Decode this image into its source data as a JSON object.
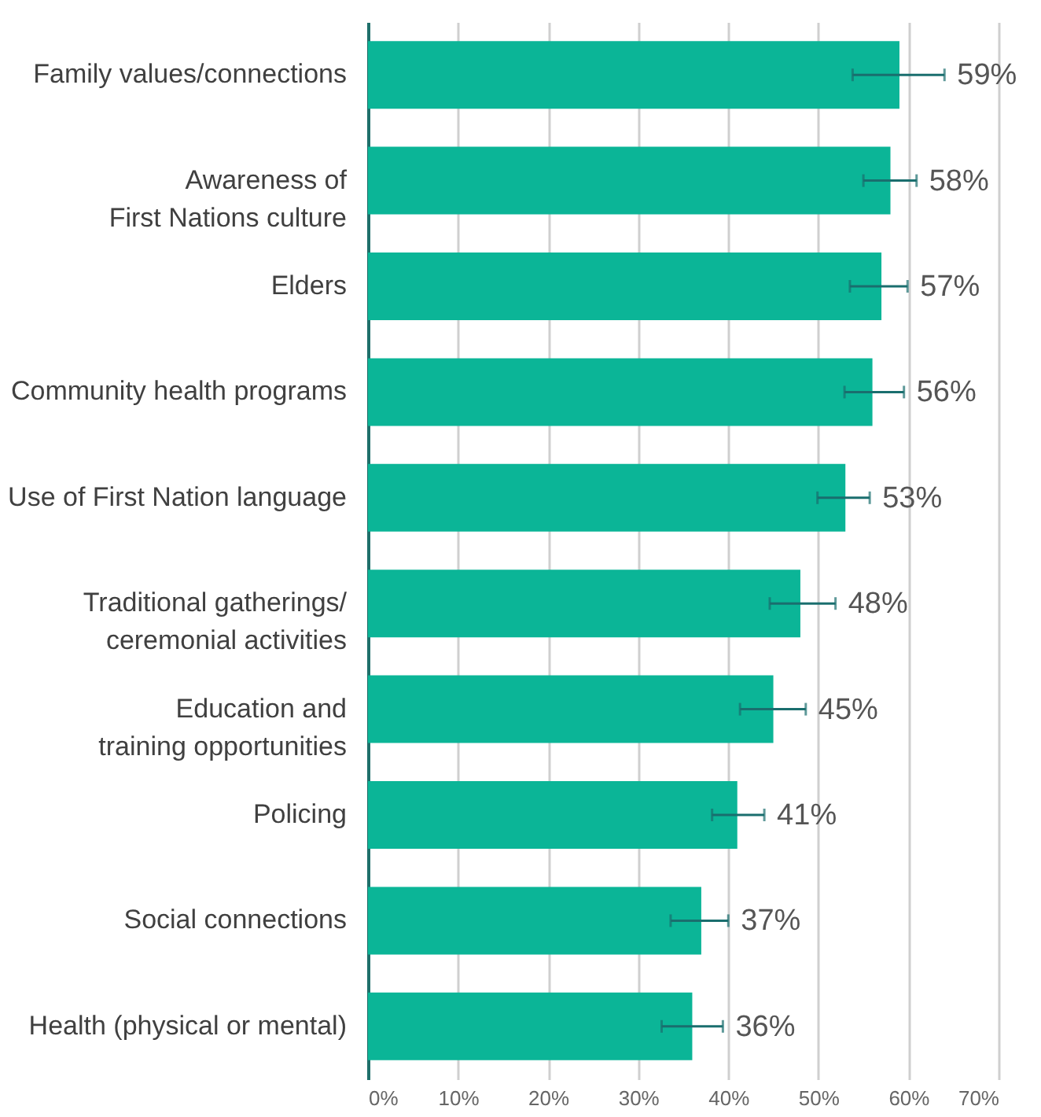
{
  "chart_data": {
    "type": "bar",
    "orientation": "horizontal",
    "categories": [
      "Family values/connections",
      "Awareness of\nFirst Nations culture",
      "Elders",
      "Community health programs",
      "Use of First Nation language",
      "Traditional gatherings/\nceremonial activities",
      "Education and\ntraining opportunities",
      "Policing",
      "Social connections",
      "Health (physical or mental)"
    ],
    "values": [
      59,
      58,
      57,
      56,
      53,
      48,
      45,
      41,
      37,
      36
    ],
    "value_labels": [
      "59%",
      "58%",
      "57%",
      "56%",
      "53%",
      "48%",
      "45%",
      "41%",
      "37%",
      "36%"
    ],
    "errors": [
      [
        53.8,
        64.0
      ],
      [
        55.0,
        60.9
      ],
      [
        53.5,
        59.9
      ],
      [
        52.9,
        59.5
      ],
      [
        49.9,
        55.7
      ],
      [
        44.6,
        51.9
      ],
      [
        41.3,
        48.6
      ],
      [
        38.2,
        44.0
      ],
      [
        33.6,
        40.0
      ],
      [
        32.6,
        39.4
      ]
    ],
    "color": "#0bb597",
    "xlim": [
      0,
      70
    ],
    "xticks": [
      {
        "value": 0,
        "label": "0%"
      },
      {
        "value": 10,
        "label": "10%"
      },
      {
        "value": 20,
        "label": "20%"
      },
      {
        "value": 30,
        "label": "30%"
      },
      {
        "value": 40,
        "label": "40%"
      },
      {
        "value": 50,
        "label": "50%"
      },
      {
        "value": 60,
        "label": "60%"
      },
      {
        "value": 70,
        "label": "70%"
      }
    ],
    "grid": "x"
  }
}
